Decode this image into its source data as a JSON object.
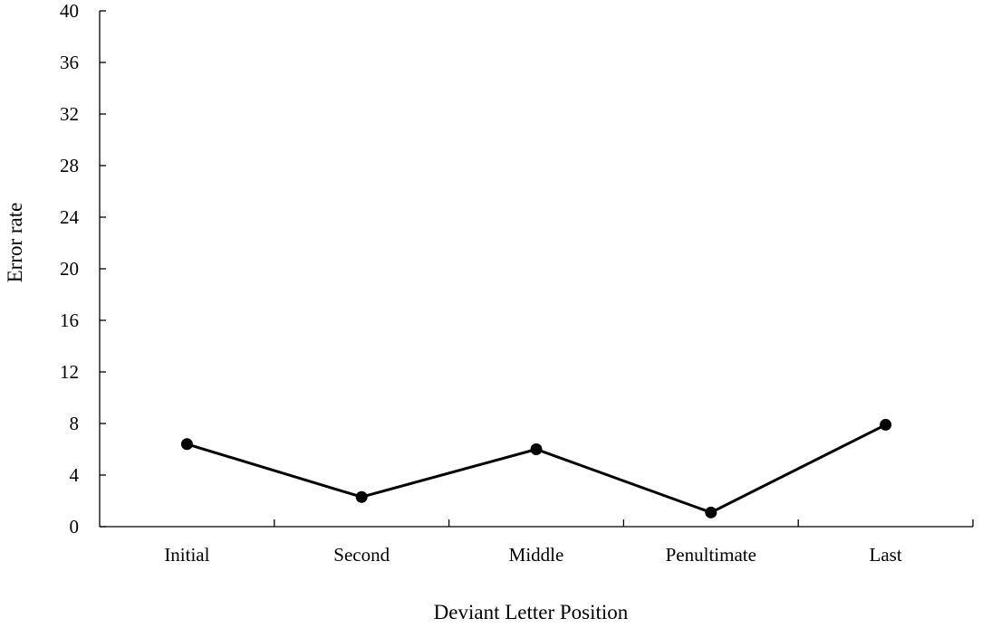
{
  "chart_data": {
    "type": "line",
    "title": "",
    "xlabel": "Deviant Letter Position",
    "ylabel": "Error rate",
    "categories": [
      "Initial",
      "Second",
      "Middle",
      "Penultimate",
      "Last"
    ],
    "series": [
      {
        "values": [
          6.4,
          2.3,
          6.0,
          1.1,
          7.9
        ],
        "color": "#000000",
        "marker": "circle"
      }
    ],
    "ylim": [
      0,
      40
    ],
    "yticks": [
      0,
      4,
      8,
      12,
      16,
      20,
      24,
      28,
      32,
      36,
      40
    ],
    "grid": false,
    "legend": "none"
  }
}
